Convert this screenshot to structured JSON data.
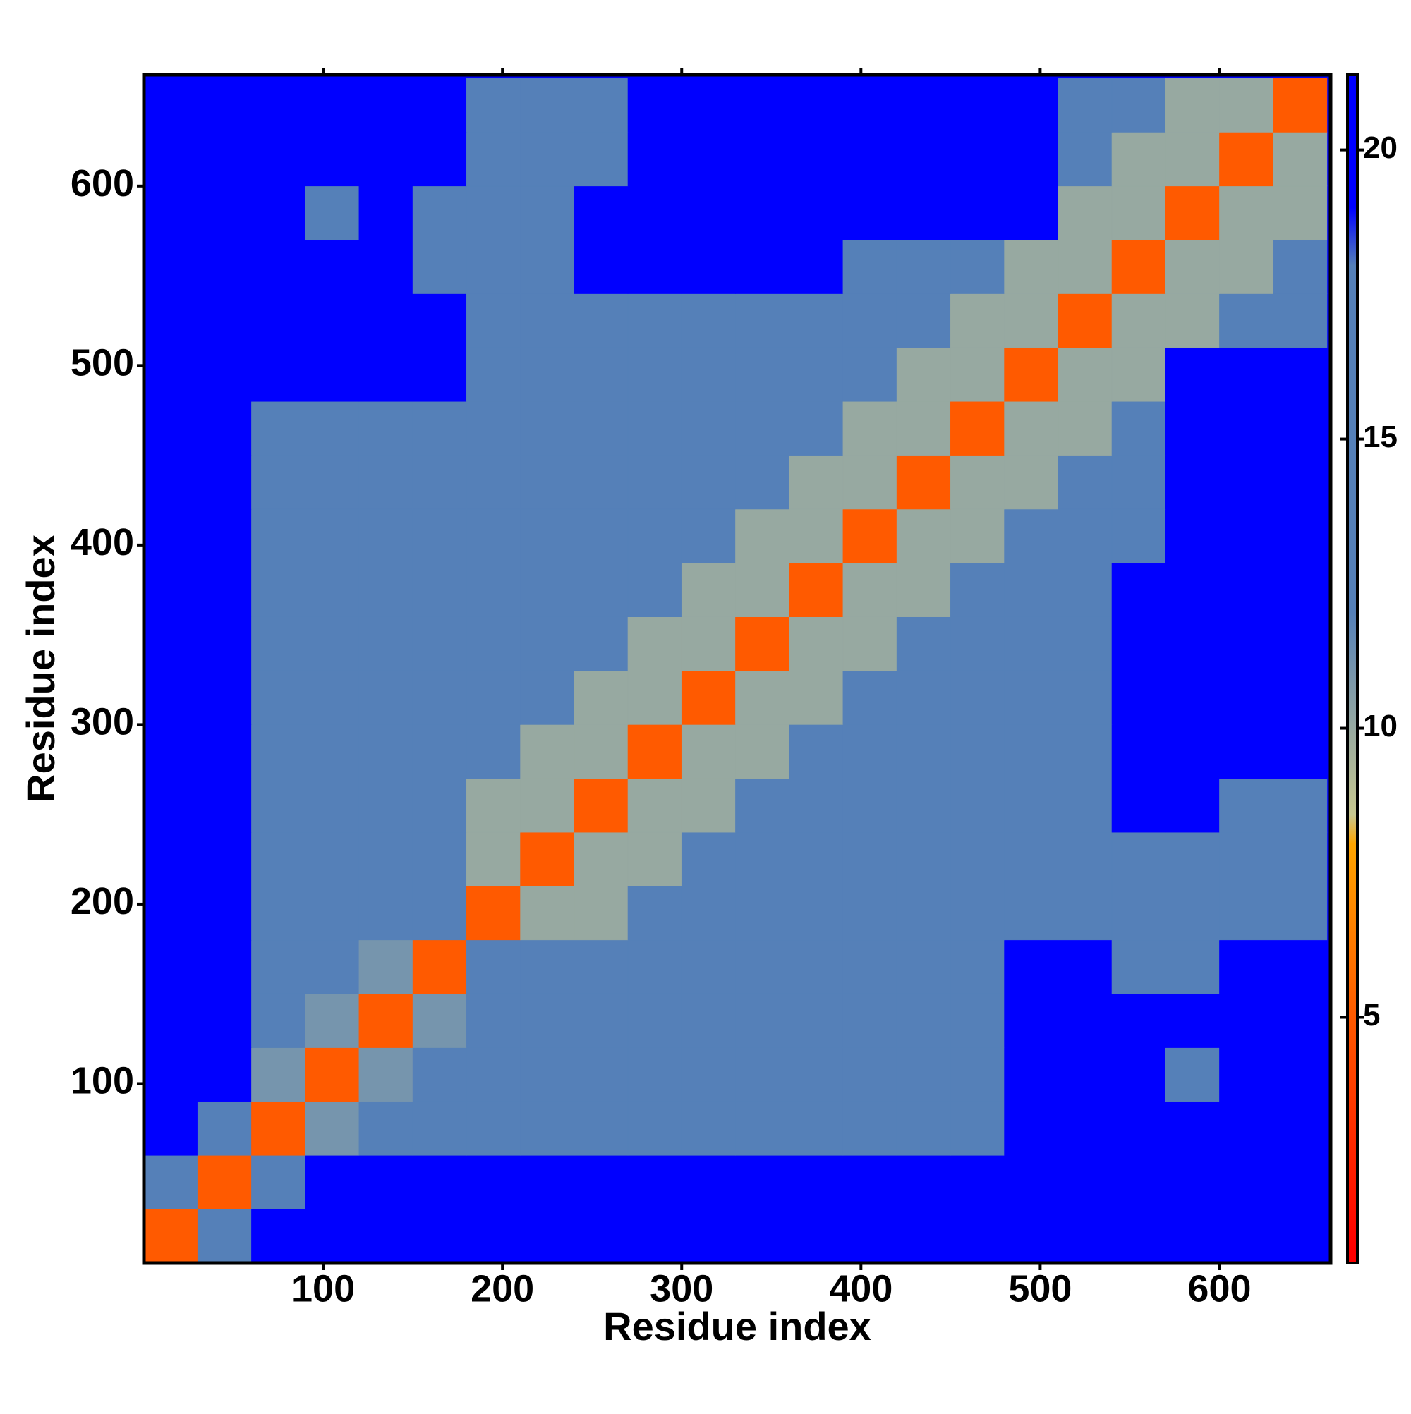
{
  "chart_data": {
    "type": "heatmap",
    "x_label": "Residue index",
    "y_label": "Residue index",
    "xlim": [
      0,
      662
    ],
    "ylim": [
      0,
      662
    ],
    "xticks": [
      100,
      200,
      300,
      400,
      500,
      600
    ],
    "yticks": [
      100,
      200,
      300,
      400,
      500,
      600
    ],
    "bins": [
      0,
      30,
      60,
      90,
      120,
      150,
      180,
      210,
      240,
      270,
      300,
      330,
      360,
      390,
      420,
      450,
      480,
      510,
      540,
      570,
      600,
      630,
      660
    ],
    "z": [
      [
        5,
        12,
        21,
        21,
        21,
        21,
        21,
        21,
        21,
        21,
        21,
        21,
        21,
        21,
        21,
        21,
        21,
        21,
        21,
        21,
        21,
        21
      ],
      [
        12,
        5,
        15,
        21,
        21,
        21,
        21,
        21,
        21,
        21,
        21,
        21,
        21,
        21,
        21,
        21,
        21,
        21,
        21,
        21,
        21,
        21
      ],
      [
        21,
        15,
        5,
        11,
        13,
        13,
        18,
        18,
        18,
        18,
        18,
        18,
        18,
        18,
        18,
        18,
        21,
        21,
        21,
        21,
        21,
        21
      ],
      [
        21,
        21,
        11,
        5,
        11,
        13,
        15,
        15,
        18,
        18,
        18,
        18,
        18,
        18,
        18,
        18,
        21,
        21,
        21,
        18,
        21,
        21
      ],
      [
        21,
        21,
        13,
        11,
        5,
        11,
        15,
        15,
        18,
        18,
        18,
        18,
        18,
        18,
        18,
        18,
        21,
        21,
        21,
        21,
        21,
        21
      ],
      [
        21,
        21,
        13,
        13,
        11,
        5,
        15,
        15,
        18,
        18,
        18,
        18,
        18,
        18,
        18,
        18,
        21,
        21,
        17,
        17,
        21,
        21
      ],
      [
        21,
        21,
        18,
        15,
        15,
        15,
        5,
        10,
        10,
        15,
        15,
        15,
        15,
        15,
        15,
        15,
        15,
        15,
        17,
        17,
        17,
        17
      ],
      [
        21,
        21,
        18,
        15,
        15,
        15,
        10,
        5,
        10,
        10,
        15,
        15,
        15,
        15,
        15,
        15,
        15,
        15,
        17,
        17,
        17,
        17
      ],
      [
        21,
        21,
        18,
        18,
        18,
        18,
        10,
        10,
        5,
        10,
        10,
        15,
        15,
        15,
        15,
        15,
        15,
        15,
        20,
        20,
        17,
        17
      ],
      [
        21,
        21,
        18,
        18,
        18,
        18,
        15,
        10,
        10,
        5,
        10,
        10,
        15,
        15,
        15,
        15,
        15,
        15,
        20,
        20,
        20,
        20
      ],
      [
        21,
        21,
        18,
        18,
        18,
        18,
        15,
        15,
        10,
        10,
        5,
        10,
        10,
        15,
        15,
        15,
        15,
        15,
        20,
        20,
        20,
        20
      ],
      [
        21,
        21,
        18,
        18,
        18,
        18,
        15,
        15,
        15,
        10,
        10,
        5,
        10,
        10,
        15,
        15,
        15,
        15,
        20,
        20,
        20,
        20
      ],
      [
        21,
        21,
        18,
        18,
        18,
        18,
        15,
        15,
        15,
        15,
        10,
        10,
        5,
        10,
        10,
        15,
        15,
        15,
        20,
        20,
        20,
        20
      ],
      [
        21,
        21,
        18,
        18,
        18,
        18,
        15,
        15,
        15,
        15,
        15,
        10,
        10,
        5,
        10,
        10,
        15,
        15,
        15,
        19,
        19,
        19
      ],
      [
        21,
        21,
        18,
        18,
        18,
        18,
        15,
        15,
        15,
        15,
        15,
        15,
        10,
        10,
        5,
        10,
        10,
        15,
        15,
        19,
        19,
        19
      ],
      [
        21,
        21,
        18,
        18,
        18,
        18,
        15,
        15,
        15,
        15,
        15,
        15,
        15,
        10,
        10,
        5,
        10,
        10,
        15,
        19,
        19,
        19
      ],
      [
        21,
        21,
        21,
        21,
        21,
        21,
        15,
        15,
        15,
        15,
        15,
        15,
        15,
        15,
        10,
        10,
        5,
        10,
        10,
        19,
        19,
        19
      ],
      [
        21,
        21,
        21,
        21,
        21,
        21,
        15,
        15,
        15,
        15,
        15,
        15,
        15,
        15,
        15,
        10,
        10,
        5,
        10,
        10,
        15,
        15
      ],
      [
        21,
        21,
        21,
        21,
        21,
        17,
        17,
        17,
        20,
        20,
        20,
        20,
        20,
        15,
        15,
        15,
        10,
        10,
        5,
        10,
        10,
        15
      ],
      [
        21,
        21,
        21,
        18,
        21,
        17,
        17,
        17,
        20,
        20,
        20,
        20,
        20,
        19,
        19,
        19,
        19,
        10,
        10,
        5,
        10,
        10
      ],
      [
        21,
        21,
        21,
        21,
        21,
        21,
        17,
        17,
        17,
        20,
        20,
        20,
        20,
        19,
        19,
        19,
        19,
        15,
        10,
        10,
        5,
        10
      ],
      [
        21,
        21,
        21,
        21,
        21,
        21,
        17,
        17,
        17,
        20,
        20,
        20,
        20,
        19,
        19,
        19,
        19,
        15,
        15,
        10,
        10,
        5
      ]
    ],
    "colorbar": {
      "lim": [
        0.75,
        21.3
      ],
      "ticks": [
        5,
        10,
        15,
        20
      ],
      "stops": [
        {
          "value": 1,
          "color": "#ff0000"
        },
        {
          "value": 5,
          "color": "#ff5a00"
        },
        {
          "value": 8,
          "color": "#ffa500"
        },
        {
          "value": 8.5,
          "color": "#c8c890"
        },
        {
          "value": 12,
          "color": "#5580b8"
        },
        {
          "value": 18,
          "color": "#5580b8"
        },
        {
          "value": 19,
          "color": "#0000ff"
        },
        {
          "value": 21.3,
          "color": "#0000ff"
        }
      ]
    }
  }
}
